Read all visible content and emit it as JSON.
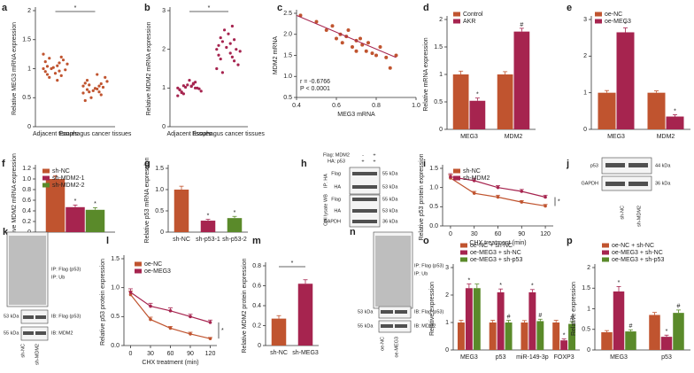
{
  "chart_data": [
    {
      "type": "strip",
      "panel_label": "a",
      "ylabel": "Relative MEG3 mRNA expression",
      "categories": [
        "Adjacent tissues",
        "Esophagus cancer tissues"
      ],
      "color": "#c0542f",
      "values": [
        [
          1.0,
          1.05,
          0.95,
          1.1,
          0.9,
          1.2,
          0.85,
          1.15,
          1.0,
          0.98,
          1.02,
          1.08,
          0.92,
          1.25,
          0.8,
          1.12,
          0.96,
          1.04,
          0.88,
          1.18
        ],
        [
          0.7,
          0.65,
          0.75,
          0.6,
          0.8,
          0.55,
          0.72,
          0.68,
          0.5,
          0.85,
          0.62,
          0.78,
          0.66,
          0.58,
          0.9,
          0.45,
          0.7,
          0.64,
          0.74,
          0.6
        ]
      ],
      "ylim": [
        0,
        2
      ],
      "yticks": [
        0,
        0.5,
        1,
        1.5,
        2
      ],
      "bracket": "*"
    },
    {
      "type": "strip",
      "panel_label": "b",
      "ylabel": "Relative MDM2 mRNA expression",
      "categories": [
        "Adjacent tissues",
        "Esophagus cancer tissues"
      ],
      "color": "#a6244f",
      "values": [
        [
          1.0,
          1.05,
          0.95,
          1.1,
          0.9,
          1.15,
          0.85,
          1.0,
          1.02,
          0.98,
          1.08,
          0.92,
          1.2,
          0.8,
          1.04,
          0.96,
          1.12,
          0.88,
          1.0,
          1.06
        ],
        [
          2.0,
          1.9,
          2.1,
          1.8,
          2.3,
          1.7,
          2.2,
          2.0,
          2.5,
          1.6,
          2.05,
          1.95,
          2.4,
          1.5,
          2.15,
          1.85,
          2.6,
          1.75,
          2.25,
          1.4
        ]
      ],
      "ylim": [
        0,
        3
      ],
      "yticks": [
        0,
        1,
        2,
        3
      ],
      "bracket": "*"
    },
    {
      "type": "scatter",
      "panel_label": "c",
      "xlabel": "MEG3 mRNA",
      "ylabel": "MDM2 mRNA",
      "color": "#c0542f",
      "x": [
        0.42,
        0.5,
        0.55,
        0.58,
        0.6,
        0.62,
        0.63,
        0.65,
        0.66,
        0.68,
        0.7,
        0.7,
        0.72,
        0.73,
        0.75,
        0.76,
        0.78,
        0.8,
        0.82,
        0.85,
        0.87,
        0.9
      ],
      "y": [
        2.45,
        2.3,
        2.1,
        2.2,
        1.9,
        2.0,
        1.8,
        1.95,
        2.1,
        1.7,
        1.85,
        1.6,
        1.9,
        1.75,
        1.6,
        1.8,
        1.55,
        1.5,
        1.7,
        1.45,
        1.2,
        1.5
      ],
      "fit": {
        "x": [
          0.4,
          0.9
        ],
        "y": [
          2.45,
          1.45
        ]
      },
      "xlim": [
        0.4,
        1
      ],
      "xticks": [
        0.4,
        0.6,
        0.8,
        {
          "value": 1,
          "label": "1.0"
        }
      ],
      "ylim": [
        0.5,
        2.5
      ],
      "yticks": [
        0.5,
        {
          "value": 1,
          "label": "1.0"
        },
        1.5,
        {
          "value": 2,
          "label": "2.0"
        },
        2.5
      ],
      "annotations": [
        "r = -0.6766",
        "P < 0.0001"
      ]
    },
    {
      "type": "bar",
      "panel_label": "d",
      "ylabel": "Relative mRNA expression",
      "categories": [
        "MEG3",
        "MDM2"
      ],
      "series": [
        {
          "name": "Control",
          "color": "#c0542f",
          "values": [
            1.0,
            1.0
          ],
          "errors": [
            0.06,
            0.05
          ],
          "sig": [
            null,
            null
          ]
        },
        {
          "name": "AKR",
          "color": "#a6244f",
          "values": [
            0.52,
            1.78
          ],
          "errors": [
            0.05,
            0.06
          ],
          "sig": [
            "*",
            "#"
          ]
        }
      ],
      "ylim": [
        0,
        2
      ],
      "yticks": [
        0,
        0.5,
        1,
        1.5,
        2
      ]
    },
    {
      "type": "bar",
      "panel_label": "e",
      "categories": [
        "MEG3",
        "MDM2"
      ],
      "series": [
        {
          "name": "oe-NC",
          "color": "#c0542f",
          "values": [
            1.0,
            1.0
          ],
          "errors": [
            0.06,
            0.05
          ],
          "sig": [
            null,
            null
          ]
        },
        {
          "name": "oe-MEG3",
          "color": "#a6244f",
          "values": [
            2.65,
            0.35
          ],
          "errors": [
            0.12,
            0.05
          ],
          "sig": [
            "*",
            "*"
          ]
        }
      ],
      "ylim": [
        0,
        3
      ],
      "yticks": [
        0,
        1,
        2,
        3
      ]
    },
    {
      "type": "bar",
      "panel_label": "f",
      "ylabel": "Relative MDM2 mRNA expression",
      "categories": [
        null
      ],
      "series": [
        {
          "name": "sh-NC",
          "color": "#c0542f",
          "values": [
            1.0
          ],
          "errors": [
            0.06
          ],
          "sig": [
            null
          ]
        },
        {
          "name": "sh-MDM2-1",
          "color": "#a6244f",
          "values": [
            0.47
          ],
          "errors": [
            0.04
          ],
          "sig": [
            "*"
          ]
        },
        {
          "name": "sh-MDM2-2",
          "color": "#5a8a2a",
          "values": [
            0.42
          ],
          "errors": [
            0.04
          ],
          "sig": [
            "*"
          ]
        }
      ],
      "ylim": [
        0,
        1.2
      ],
      "yticks": [
        0,
        0.2,
        0.4,
        0.6,
        0.8,
        {
          "value": 1,
          "label": "1.0"
        },
        1.2
      ]
    },
    {
      "type": "bar",
      "panel_label": "g",
      "ylabel": "Relative p53 mRNA expression",
      "categories": [
        "sh-NC",
        "sh-p53-1",
        "sh-p53-2"
      ],
      "values": [
        1.0,
        0.27,
        0.33
      ],
      "errors": [
        0.08,
        0.03,
        0.04
      ],
      "sig": [
        null,
        "*",
        "*"
      ],
      "colors": [
        "#c0542f",
        "#a6244f",
        "#5a8a2a"
      ],
      "ylim": [
        0,
        1.5
      ],
      "yticks": [
        0,
        0.5,
        {
          "value": 1,
          "label": "1.0"
        },
        1.5
      ]
    },
    {
      "type": "line",
      "panel_label": "i",
      "xlabel": "CHX treatment (min)",
      "ylabel": "Relative p53 protein expression",
      "x": [
        0,
        30,
        60,
        90,
        120
      ],
      "series": [
        {
          "name": "sh-NC",
          "color": "#c0542f",
          "values": [
            1.25,
            0.85,
            0.75,
            0.62,
            0.52
          ],
          "errors": [
            0.08,
            0.05,
            0.05,
            0.04,
            0.04
          ]
        },
        {
          "name": "sh-MDM2",
          "color": "#a6244f",
          "values": [
            1.28,
            1.18,
            1.0,
            0.9,
            0.75
          ],
          "errors": [
            0.08,
            0.06,
            0.05,
            0.05,
            0.05
          ]
        }
      ],
      "xlim": [
        -10,
        130
      ],
      "xticks": [
        0,
        30,
        60,
        90,
        120
      ],
      "ylim": [
        0,
        1.5
      ],
      "yticks": [
        {
          "value": 0,
          "label": "0.0"
        },
        0.5,
        {
          "value": 1,
          "label": "1.0"
        },
        1.5
      ],
      "annotation": "*"
    },
    {
      "type": "line",
      "panel_label": "l",
      "xlabel": "CHX treatment (min)",
      "ylabel": "Relative p53 protein expression",
      "x": [
        0,
        30,
        60,
        90,
        120
      ],
      "series": [
        {
          "name": "oe-NC",
          "color": "#c0542f",
          "values": [
            0.88,
            0.45,
            0.3,
            0.2,
            0.12
          ],
          "errors": [
            0.06,
            0.04,
            0.03,
            0.03,
            0.02
          ]
        },
        {
          "name": "oe-MEG3",
          "color": "#a6244f",
          "values": [
            0.92,
            0.68,
            0.6,
            0.5,
            0.4
          ],
          "errors": [
            0.06,
            0.05,
            0.05,
            0.04,
            0.04
          ]
        }
      ],
      "xlim": [
        -10,
        130
      ],
      "xticks": [
        0,
        30,
        60,
        90,
        120
      ],
      "ylim": [
        0,
        1.5
      ],
      "yticks": [
        {
          "value": 0,
          "label": "0.0"
        },
        0.5,
        {
          "value": 1,
          "label": "1.0"
        },
        1.5
      ],
      "annotation": "*"
    },
    {
      "type": "bar",
      "panel_label": "m",
      "ylabel": "Relative MDM2 protein expression",
      "categories": [
        "sh-NC",
        "sh-MEG3"
      ],
      "values": [
        0.27,
        0.62
      ],
      "errors": [
        0.03,
        0.04
      ],
      "sig": [
        null,
        null
      ],
      "colors": [
        "#c0542f",
        "#a6244f"
      ],
      "ylim": [
        0,
        0.8
      ],
      "yticks": [
        0,
        0.2,
        0.4,
        0.6,
        0.8
      ],
      "bracket": "*"
    },
    {
      "type": "bar",
      "panel_label": "o",
      "ylabel": "Relative  expression",
      "categories": [
        "MEG3",
        "p53",
        "miR-149-3p",
        "FOXP3"
      ],
      "series": [
        {
          "name": "oe-NC + sh-NC",
          "color": "#c0542f",
          "values": [
            1,
            1,
            1,
            1
          ],
          "errors": [
            0.08,
            0.08,
            0.07,
            0.08
          ],
          "sig": [
            null,
            null,
            null,
            null
          ]
        },
        {
          "name": "oe-MEG3 + sh-NC",
          "color": "#a6244f",
          "values": [
            2.25,
            2.1,
            2.1,
            0.35
          ],
          "errors": [
            0.15,
            0.12,
            0.1,
            0.05
          ],
          "sig": [
            "*",
            "*",
            "*",
            "*"
          ]
        },
        {
          "name": "oe-MEG3 + sh-p53",
          "color": "#5a8a2a",
          "values": [
            2.25,
            1.0,
            1.05,
            0.95
          ],
          "errors": [
            0.15,
            0.08,
            0.07,
            0.08
          ],
          "sig": [
            null,
            "#",
            "#",
            "#"
          ]
        }
      ],
      "ylim": [
        0,
        3
      ],
      "yticks": [
        0,
        1,
        2,
        3
      ]
    },
    {
      "type": "bar",
      "panel_label": "p",
      "ylabel": "Relative  expression",
      "categories": [
        "MEG3",
        "p53"
      ],
      "series": [
        {
          "name": "oe-NC + sh-NC",
          "color": "#c0542f",
          "values": [
            0.43,
            0.85
          ],
          "errors": [
            0.04,
            0.06
          ],
          "sig": [
            null,
            null
          ]
        },
        {
          "name": "oe-MEG3 + sh-NC",
          "color": "#a6244f",
          "values": [
            1.42,
            0.32
          ],
          "errors": [
            0.12,
            0.04
          ],
          "sig": [
            "*",
            "*"
          ]
        },
        {
          "name": "oe-MEG3 + sh-p53",
          "color": "#5a8a2a",
          "values": [
            0.45,
            0.9
          ],
          "errors": [
            0.04,
            0.07
          ],
          "sig": [
            "#",
            "#"
          ]
        }
      ],
      "ylim": [
        0,
        2
      ],
      "yticks": [
        0,
        0.5,
        1,
        1.5,
        2
      ]
    }
  ],
  "blots": [
    {
      "panel_label": "h",
      "texts": [
        "Flag: MDM2",
        "-",
        "+",
        "HA: p53",
        "+",
        "+",
        "Flag",
        "55 kDa",
        "HA",
        "53 kDa",
        "Flag",
        "55 kDa",
        "HA",
        "53 kDa",
        "GAPDH",
        "36 kDa",
        "IP: HA",
        "Cell lysate WB"
      ]
    },
    {
      "panel_label": "j",
      "texts": [
        "p53",
        "44 kDa",
        "GAPDH",
        "36 kDa",
        "sh-NC",
        "sh-MDM2"
      ]
    },
    {
      "panel_label": "k",
      "texts": [
        "IP: Flag (p53)",
        "IP: Ub",
        "53 kDa",
        "IB: Flag (p53)",
        "55 kDa",
        "IB: MDM2",
        "sh-NC",
        "sh-MDM2"
      ]
    },
    {
      "panel_label": "n",
      "texts": [
        "IP: Flag (p53)",
        "IP: Ub",
        "53 kDa",
        "IB: Flag (p53)",
        "55 kDa",
        "IB: MDM2",
        "oe-NC",
        "oe-MEG3"
      ]
    }
  ]
}
